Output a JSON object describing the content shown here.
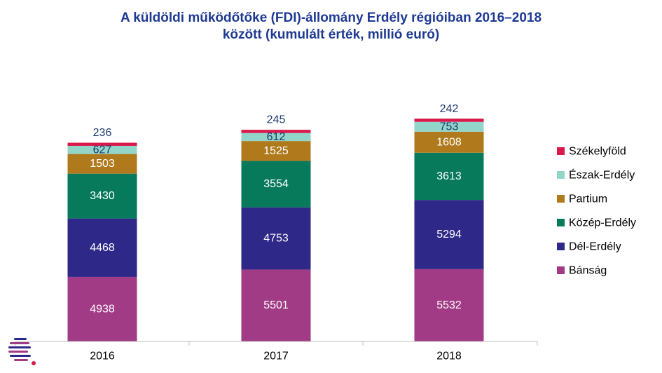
{
  "chart_data": {
    "type": "stacked-bar",
    "title_line1": "A küldöldi működőtőke (FDI)-állomány Erdély régióiban 2016–2018",
    "title_line2": "között (kumulált érték, millió euró)",
    "categories": [
      "2016",
      "2017",
      "2018"
    ],
    "series": [
      {
        "name": "Bánság",
        "color": "#a23b86",
        "label_color": "#ffffff",
        "values": [
          4938,
          5501,
          5532
        ]
      },
      {
        "name": "Dél-Erdély",
        "color": "#2e2888",
        "label_color": "#ffffff",
        "values": [
          4468,
          4753,
          5294
        ]
      },
      {
        "name": "Közép-Erdély",
        "color": "#087a5c",
        "label_color": "#ffffff",
        "values": [
          3430,
          3554,
          3613
        ]
      },
      {
        "name": "Partium",
        "color": "#b07a1c",
        "label_color": "#ffffff",
        "values": [
          1503,
          1525,
          1608
        ]
      },
      {
        "name": "Észak-Erdély",
        "color": "#92d5c9",
        "label_color": "#1f3a6e",
        "values": [
          627,
          612,
          753
        ]
      },
      {
        "name": "Székelyföld",
        "color": "#d9184b",
        "label_color": "#1f3a6e",
        "values": [
          236,
          245,
          242
        ]
      }
    ],
    "legend_position": "right",
    "grid": false
  }
}
